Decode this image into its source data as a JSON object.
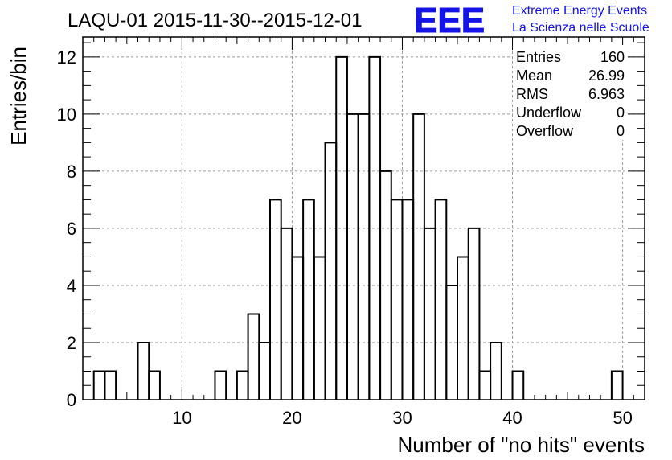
{
  "header": {
    "title": "LAQU-01 2015-11-30--2015-12-01",
    "logo_text": "EEE",
    "logo_line1": "Extreme Energy Events",
    "logo_line2": "La Scienza nelle Scuole",
    "logo_color": "#1414e6"
  },
  "stats": [
    {
      "label": "Entries",
      "value": "160"
    },
    {
      "label": "Mean",
      "value": "26.99"
    },
    {
      "label": "RMS",
      "value": "6.963"
    },
    {
      "label": "Underflow",
      "value": "0"
    },
    {
      "label": "Overflow",
      "value": "0"
    }
  ],
  "chart_data": {
    "type": "bar",
    "title": "LAQU-01 2015-11-30--2015-12-01",
    "xlabel": "Number of \"no hits\" events",
    "ylabel": "Entries/bin",
    "xlim": [
      1,
      52
    ],
    "ylim": [
      0,
      12.7
    ],
    "bin_width": 1,
    "grid": true,
    "x": [
      3,
      4,
      7,
      8,
      14,
      16,
      17,
      18,
      19,
      20,
      21,
      22,
      23,
      24,
      25,
      26,
      27,
      28,
      29,
      30,
      31,
      32,
      33,
      34,
      35,
      36,
      37,
      38,
      39,
      41,
      50
    ],
    "values": [
      1,
      1,
      2,
      1,
      1,
      1,
      3,
      2,
      7,
      6,
      5,
      7,
      5,
      9,
      12,
      10,
      10,
      12,
      8,
      7,
      7,
      10,
      6,
      7,
      4,
      5,
      6,
      1,
      2,
      1,
      1
    ],
    "x_ticks": [
      "10",
      "20",
      "30",
      "40",
      "50"
    ],
    "y_ticks": [
      "0",
      "2",
      "4",
      "6",
      "8",
      "10",
      "12"
    ]
  }
}
